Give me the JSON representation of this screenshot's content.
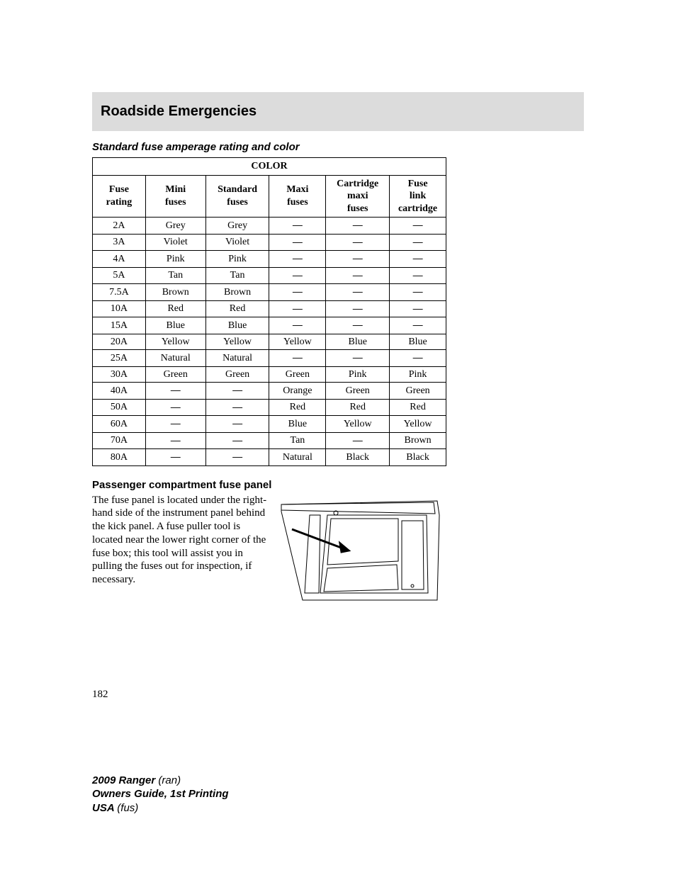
{
  "header": {
    "title": "Roadside Emergencies"
  },
  "section1": {
    "title": "Standard fuse amperage rating and color"
  },
  "table": {
    "title": "COLOR",
    "columns": [
      "Fuse rating",
      "Mini fuses",
      "Standard fuses",
      "Maxi fuses",
      "Cartridge maxi fuses",
      "Fuse link cartridge"
    ],
    "column_widths_pct": [
      15,
      17,
      18,
      16,
      18,
      16
    ],
    "border_color": "#000000",
    "rows": [
      [
        "2A",
        "Grey",
        "Grey",
        "—",
        "—",
        "—"
      ],
      [
        "3A",
        "Violet",
        "Violet",
        "—",
        "—",
        "—"
      ],
      [
        "4A",
        "Pink",
        "Pink",
        "—",
        "—",
        "—"
      ],
      [
        "5A",
        "Tan",
        "Tan",
        "—",
        "—",
        "—"
      ],
      [
        "7.5A",
        "Brown",
        "Brown",
        "—",
        "—",
        "—"
      ],
      [
        "10A",
        "Red",
        "Red",
        "—",
        "—",
        "—"
      ],
      [
        "15A",
        "Blue",
        "Blue",
        "—",
        "—",
        "—"
      ],
      [
        "20A",
        "Yellow",
        "Yellow",
        "Yellow",
        "Blue",
        "Blue"
      ],
      [
        "25A",
        "Natural",
        "Natural",
        "—",
        "—",
        "—"
      ],
      [
        "30A",
        "Green",
        "Green",
        "Green",
        "Pink",
        "Pink"
      ],
      [
        "40A",
        "—",
        "—",
        "Orange",
        "Green",
        "Green"
      ],
      [
        "50A",
        "—",
        "—",
        "Red",
        "Red",
        "Red"
      ],
      [
        "60A",
        "—",
        "—",
        "Blue",
        "Yellow",
        "Yellow"
      ],
      [
        "70A",
        "—",
        "—",
        "Tan",
        "—",
        "Brown"
      ],
      [
        "80A",
        "—",
        "—",
        "Natural",
        "Black",
        "Black"
      ]
    ]
  },
  "section2": {
    "title": "Passenger compartment fuse panel",
    "body": "The fuse panel is located under the right-hand side of the instrument panel behind the kick panel. A fuse puller tool is located near the lower right corner of the fuse box; this tool will assist you in pulling the fuses out for inspection, if necessary."
  },
  "diagram": {
    "stroke": "#000000",
    "stroke_width": 1,
    "arrow_width": 3
  },
  "page_number": "182",
  "footer": {
    "line1a": "2009 Ranger ",
    "line1b": "(ran)",
    "line2": "Owners Guide, 1st Printing",
    "line3a": "USA ",
    "line3b": "(fus)"
  }
}
